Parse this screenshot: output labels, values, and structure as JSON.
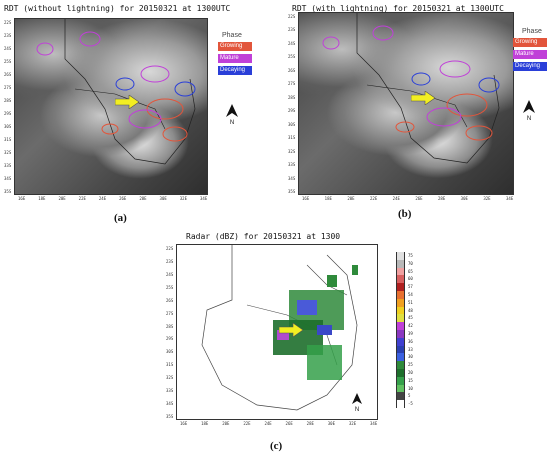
{
  "panel_a": {
    "title": "RDT (without lightning)  for  20150321  at  1300UTC",
    "caption": "(a)",
    "legend_title": "Phase",
    "legend": [
      "Growing",
      "Mature",
      "Decaying"
    ],
    "north": "N"
  },
  "panel_b": {
    "title": "RDT (with lightning)  for  20150321  at  1300UTC",
    "caption": "(b)",
    "legend_title": "Phase",
    "legend": [
      "Growing",
      "Mature",
      "Decaying"
    ],
    "north": "N"
  },
  "panel_c": {
    "title": "Radar (dBZ) for 20150321 at 1300",
    "caption": "(c)",
    "north": "N",
    "colorbar": [
      "75",
      "70",
      "65",
      "60",
      "57",
      "54",
      "51",
      "48",
      "45",
      "42",
      "39",
      "36",
      "33",
      "30",
      "25",
      "20",
      "15",
      "10",
      "5",
      "-5"
    ]
  },
  "map_axes": {
    "y_labels": [
      "22S",
      "23S",
      "24S",
      "25S",
      "26S",
      "27S",
      "28S",
      "29S",
      "30S",
      "31S",
      "32S",
      "33S",
      "34S",
      "35S"
    ],
    "x_labels": [
      "16E",
      "18E",
      "20E",
      "22E",
      "24E",
      "26E",
      "28E",
      "30E",
      "32E",
      "34E"
    ]
  },
  "colors": {
    "growing": "#e2553b",
    "mature": "#c040d8",
    "decaying": "#2a3fd8",
    "arrow": "#f2ee22"
  }
}
